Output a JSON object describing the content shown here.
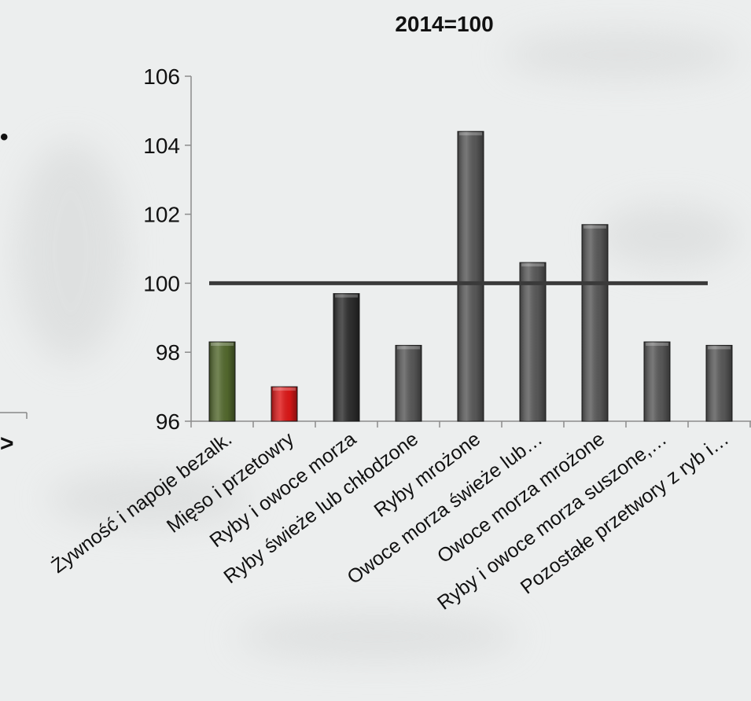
{
  "chart_data": {
    "type": "bar",
    "title": "2014=100",
    "xlabel": "",
    "ylabel": "",
    "ylim": [
      96,
      106
    ],
    "yticks": [
      "96",
      "98",
      "100",
      "102",
      "104",
      "106"
    ],
    "categories": [
      "Żywność i napoje bezalk.",
      "Mięso i przetowry",
      "Ryby i owoce morza",
      "Ryby świeże lub chłodzone",
      "Ryby mrożone",
      "Owoce morza świeże lub…",
      "Owoce morza mrożone",
      "Ryby i owoce morza suszone,…",
      "Pozostałe przetwory z ryb i…"
    ],
    "values": [
      98.3,
      97.0,
      99.7,
      98.2,
      104.4,
      100.6,
      101.7,
      98.3,
      98.2
    ],
    "colors": [
      "#556b2f",
      "#e01818",
      "#2f2f2f",
      "#5a5a5a",
      "#5a5a5a",
      "#5a5a5a",
      "#5a5a5a",
      "#5a5a5a",
      "#5a5a5a"
    ],
    "reference_line": {
      "value": 100,
      "color": "#3a3a3a"
    },
    "grid": false,
    "legend": "none"
  }
}
